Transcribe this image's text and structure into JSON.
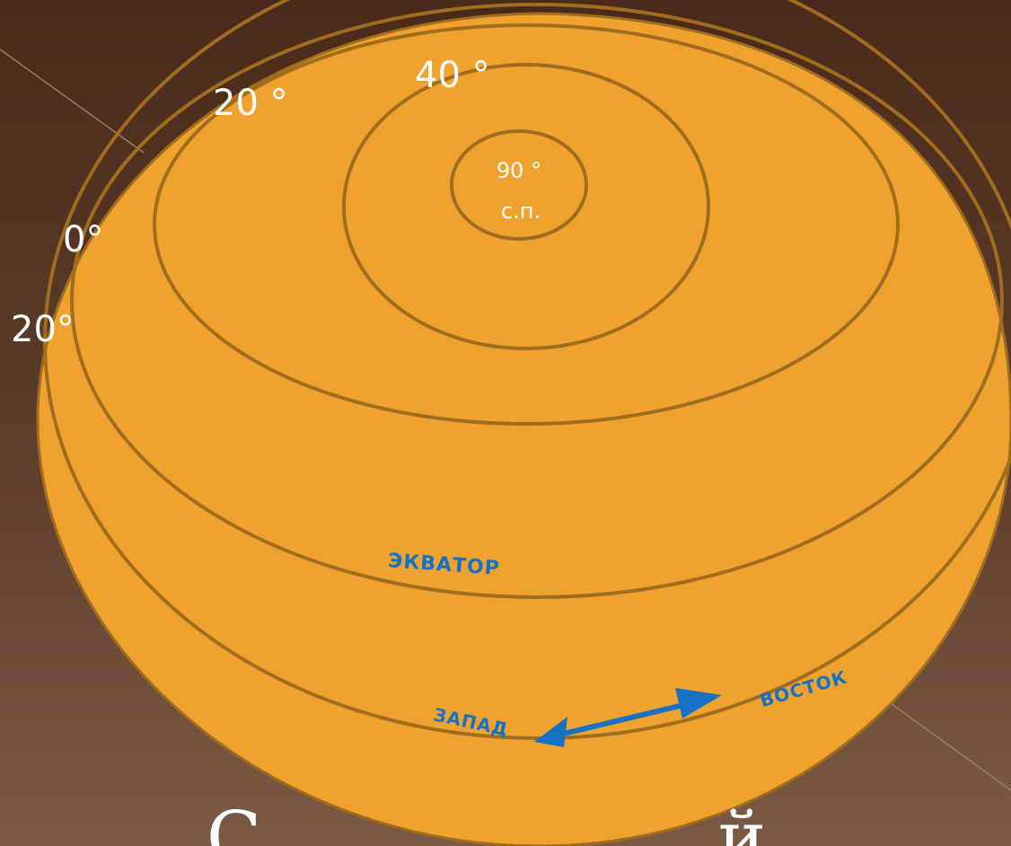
{
  "diagram": {
    "latitude_labels": {
      "pole": "90 °",
      "pole_abbrev": "с.п.",
      "lat40": "40 °",
      "lat20_upper": "20 °",
      "lat0": "0°",
      "lat20_lower": "20°"
    },
    "equator_label": "ЭКВАТОР",
    "west_label": "ЗАПАД",
    "east_label": "ВОСТОК",
    "caption": "С                    й                              й"
  },
  "colors": {
    "sphere_fill": "#f0a22e",
    "sphere_stroke": "#a06d1f",
    "line": "#a06d1f",
    "accent_blue": "#1672c4",
    "background_top": "#4a2a1a",
    "background_bottom": "#7a5a44"
  }
}
